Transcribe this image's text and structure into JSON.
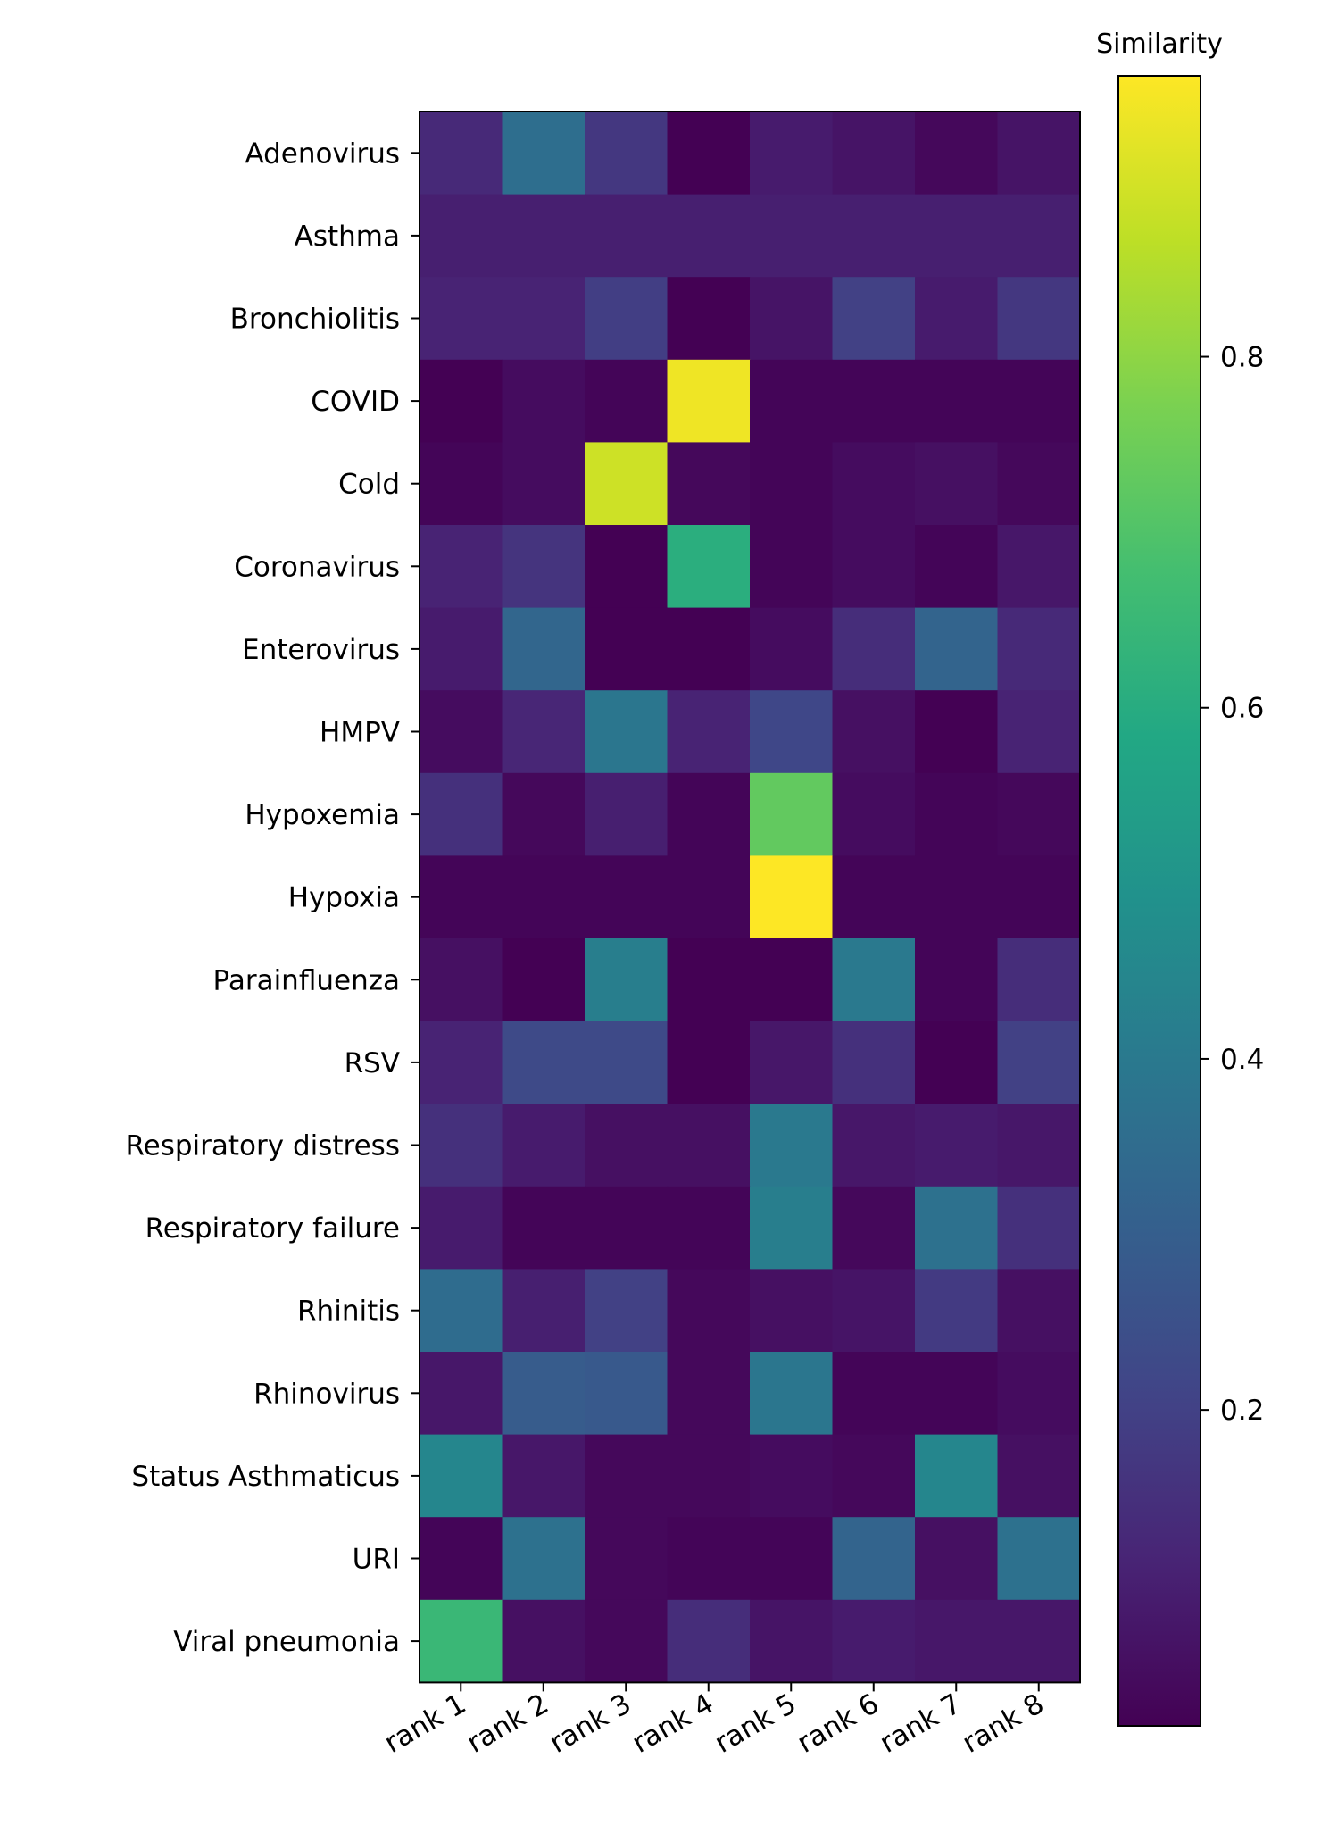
{
  "chart_data": {
    "type": "heatmap",
    "title": "",
    "xlabel": "",
    "ylabel": "",
    "x_categories": [
      "rank 1",
      "rank 2",
      "rank 3",
      "rank 4",
      "rank 5",
      "rank 6",
      "rank 7",
      "rank 8"
    ],
    "y_categories": [
      "Adenovirus",
      "Asthma",
      "Bronchiolitis",
      "COVID",
      "Cold",
      "Coronavirus",
      "Enterovirus",
      "HMPV",
      "Hypoxemia",
      "Hypoxia",
      "Parainfluenza",
      "RSV",
      "Respiratory distress",
      "Respiratory failure",
      "Rhinitis",
      "Rhinovirus",
      "Status Asthmaticus",
      "URI",
      "Viral pneumonia"
    ],
    "values": [
      [
        0.13,
        0.36,
        0.17,
        0.02,
        0.09,
        0.07,
        0.04,
        0.07
      ],
      [
        0.1,
        0.1,
        0.1,
        0.1,
        0.1,
        0.1,
        0.1,
        0.1
      ],
      [
        0.11,
        0.11,
        0.19,
        0.02,
        0.07,
        0.2,
        0.09,
        0.17
      ],
      [
        0.02,
        0.05,
        0.03,
        0.94,
        0.03,
        0.03,
        0.03,
        0.03
      ],
      [
        0.03,
        0.05,
        0.89,
        0.04,
        0.03,
        0.05,
        0.06,
        0.04
      ],
      [
        0.11,
        0.16,
        0.02,
        0.61,
        0.03,
        0.05,
        0.03,
        0.08
      ],
      [
        0.09,
        0.33,
        0.02,
        0.02,
        0.05,
        0.14,
        0.32,
        0.13
      ],
      [
        0.05,
        0.12,
        0.39,
        0.11,
        0.22,
        0.06,
        0.02,
        0.11
      ],
      [
        0.15,
        0.04,
        0.1,
        0.03,
        0.73,
        0.05,
        0.03,
        0.04
      ],
      [
        0.03,
        0.03,
        0.03,
        0.03,
        0.96,
        0.03,
        0.03,
        0.03
      ],
      [
        0.06,
        0.02,
        0.42,
        0.02,
        0.02,
        0.4,
        0.03,
        0.14
      ],
      [
        0.11,
        0.23,
        0.23,
        0.02,
        0.08,
        0.15,
        0.02,
        0.2
      ],
      [
        0.15,
        0.09,
        0.06,
        0.06,
        0.4,
        0.08,
        0.09,
        0.08
      ],
      [
        0.09,
        0.03,
        0.03,
        0.03,
        0.42,
        0.04,
        0.37,
        0.15
      ],
      [
        0.35,
        0.1,
        0.2,
        0.04,
        0.06,
        0.07,
        0.18,
        0.06
      ],
      [
        0.08,
        0.29,
        0.28,
        0.04,
        0.39,
        0.03,
        0.03,
        0.05
      ],
      [
        0.45,
        0.08,
        0.04,
        0.04,
        0.05,
        0.04,
        0.45,
        0.06
      ],
      [
        0.03,
        0.37,
        0.04,
        0.03,
        0.03,
        0.32,
        0.06,
        0.37
      ],
      [
        0.65,
        0.06,
        0.04,
        0.14,
        0.07,
        0.09,
        0.08,
        0.08
      ]
    ],
    "colormap": "viridis",
    "vmin": 0.02,
    "vmax": 0.96,
    "colorbar": {
      "label": "Similarity",
      "ticks": [
        0.2,
        0.4,
        0.6,
        0.8
      ],
      "tick_labels": [
        "0.2",
        "0.4",
        "0.6",
        "0.8"
      ],
      "placement": "right"
    },
    "grid": false,
    "legend": "none"
  }
}
